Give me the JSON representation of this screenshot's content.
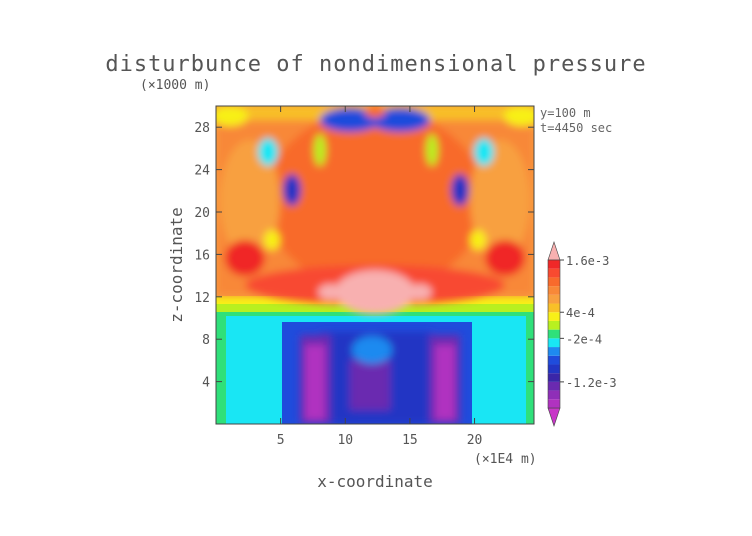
{
  "chart_data": {
    "type": "heatmap",
    "title": "disturbunce of nondimensional pressure",
    "y_unit_label": "(×1000 m)",
    "x_unit_label": "(×1E4 m)",
    "xlabel": "x-coordinate",
    "ylabel": "z-coordinate",
    "annotations": [
      "y=100 m",
      "t=4450 sec"
    ],
    "xlim": [
      0,
      24.6
    ],
    "ylim": [
      0,
      30
    ],
    "x_ticks": [
      5,
      10,
      15,
      20
    ],
    "y_ticks": [
      4,
      8,
      12,
      16,
      20,
      24,
      28
    ],
    "colorbar": {
      "levels": [
        {
          "value": -0.0018,
          "color": "#c837c8"
        },
        {
          "value": -0.0016,
          "color": "#b032c0"
        },
        {
          "value": -0.0014,
          "color": "#8f2fb8"
        },
        {
          "value": -0.0012,
          "color": "#6a2ab0"
        },
        {
          "value": -0.001,
          "color": "#3a26a8"
        },
        {
          "value": -0.0008,
          "color": "#2236c4"
        },
        {
          "value": -0.0006,
          "color": "#1f4cdc"
        },
        {
          "value": -0.0004,
          "color": "#1e8af0"
        },
        {
          "value": -0.0002,
          "color": "#19e6f4"
        },
        {
          "value": 0,
          "color": "#2fe07a"
        },
        {
          "value": 0.0002,
          "color": "#b8f020"
        },
        {
          "value": 0.0004,
          "color": "#f8f018"
        },
        {
          "value": 0.0006,
          "color": "#f8c028"
        },
        {
          "value": 0.0008,
          "color": "#f8a040"
        },
        {
          "value": 0.001,
          "color": "#f88838"
        },
        {
          "value": 0.0012,
          "color": "#f86a2c"
        },
        {
          "value": 0.0014,
          "color": "#f84a30"
        },
        {
          "value": 0.0016,
          "color": "#f02828"
        },
        {
          "value": 0.0018,
          "color": "#f8b0b0"
        }
      ],
      "labels": [
        {
          "text": "1.6e-3",
          "level_index": 17
        },
        {
          "text": "4e-4",
          "level_index": 11
        },
        {
          "text": "-2e-4",
          "level_index": 8
        },
        {
          "text": "-1.2e-3",
          "level_index": 3
        }
      ]
    }
  }
}
